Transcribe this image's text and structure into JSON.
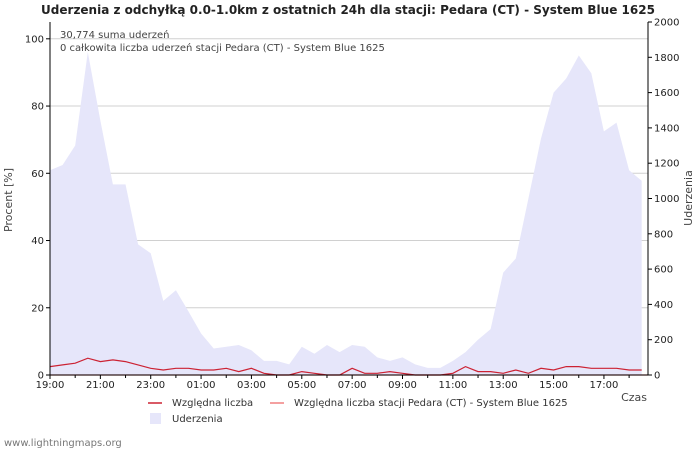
{
  "chart_data": {
    "type": "line",
    "title": "Uderzenia z odchyłką 0.0-1.0km z ostatnich 24h dla stacji: Pedara (CT) - System Blue 1625",
    "ylabel_left": "Procent   [%]",
    "ylabel_right": "Uderzenia",
    "xlabel": "Czas",
    "ylim_left": [
      0,
      105
    ],
    "ylim_right": [
      0,
      2000
    ],
    "left_ticks": [
      0,
      20,
      40,
      60,
      80,
      100
    ],
    "right_ticks": [
      0,
      200,
      400,
      600,
      800,
      1000,
      1200,
      1400,
      1600,
      1800,
      2000
    ],
    "x_ticks": [
      "19:00",
      "21:00",
      "23:00",
      "01:00",
      "03:00",
      "05:00",
      "07:00",
      "09:00",
      "11:00",
      "13:00",
      "15:00",
      "17:00"
    ],
    "x_range_hours": [
      0,
      23.75
    ],
    "annotations": [
      "30,774 suma uderzeń",
      "0 całkowita liczba uderzeń stacji Pedara (CT) - System Blue 1625"
    ],
    "series": [
      {
        "name": "Uderzenia",
        "axis": "right",
        "color": "#e6e6fa",
        "x": [
          0,
          0.5,
          1,
          1.5,
          2,
          2.5,
          3,
          3.5,
          4,
          4.5,
          5,
          5.5,
          6,
          6.5,
          7,
          7.5,
          8,
          8.5,
          9,
          9.5,
          10,
          10.5,
          11,
          11.5,
          12,
          12.5,
          13,
          13.5,
          14,
          14.5,
          15,
          15.5,
          16,
          16.5,
          17,
          17.5,
          18,
          18.5,
          19,
          19.5,
          20,
          20.5,
          21,
          21.5,
          22,
          22.5,
          23,
          23.5
        ],
        "values": [
          1160,
          1190,
          1300,
          1830,
          1440,
          1080,
          1080,
          740,
          690,
          420,
          480,
          360,
          235,
          150,
          160,
          170,
          140,
          80,
          80,
          60,
          160,
          120,
          170,
          130,
          170,
          160,
          100,
          80,
          100,
          60,
          40,
          40,
          80,
          130,
          200,
          260,
          580,
          660,
          1000,
          1340,
          1600,
          1680,
          1810,
          1710,
          1380,
          1430,
          1160,
          1100
        ]
      },
      {
        "name": "Względna liczba",
        "axis": "left",
        "color": "#cc2233",
        "x": [
          0,
          0.5,
          1,
          1.5,
          2,
          2.5,
          3,
          3.5,
          4,
          4.5,
          5,
          5.5,
          6,
          6.5,
          7,
          7.5,
          8,
          8.5,
          9,
          9.5,
          10,
          10.5,
          11,
          11.5,
          12,
          12.5,
          13,
          13.5,
          14,
          14.5,
          15,
          15.5,
          16,
          16.5,
          17,
          17.5,
          18,
          18.5,
          19,
          19.5,
          20,
          20.5,
          21,
          21.5,
          22,
          22.5,
          23,
          23.5
        ],
        "values": [
          2.5,
          3,
          3.5,
          5,
          4,
          4.5,
          4,
          3,
          2,
          1.5,
          2,
          2,
          1.5,
          1.5,
          2,
          1,
          2,
          0.5,
          0,
          0,
          1,
          0.5,
          0,
          0,
          2,
          0.5,
          0.5,
          1,
          0.5,
          0,
          0,
          0,
          0.5,
          2.5,
          1,
          1,
          0.5,
          1.5,
          0.5,
          2,
          1.5,
          2.5,
          2.5,
          2,
          2,
          2,
          1.5,
          1.5
        ]
      },
      {
        "name": "Względna liczba stacji Pedara (CT) - System Blue 1625",
        "axis": "left",
        "color": "#f08080",
        "x": [
          0,
          23.75
        ],
        "values": [
          0,
          0
        ]
      }
    ]
  },
  "footer": "www.lightningmaps.org"
}
